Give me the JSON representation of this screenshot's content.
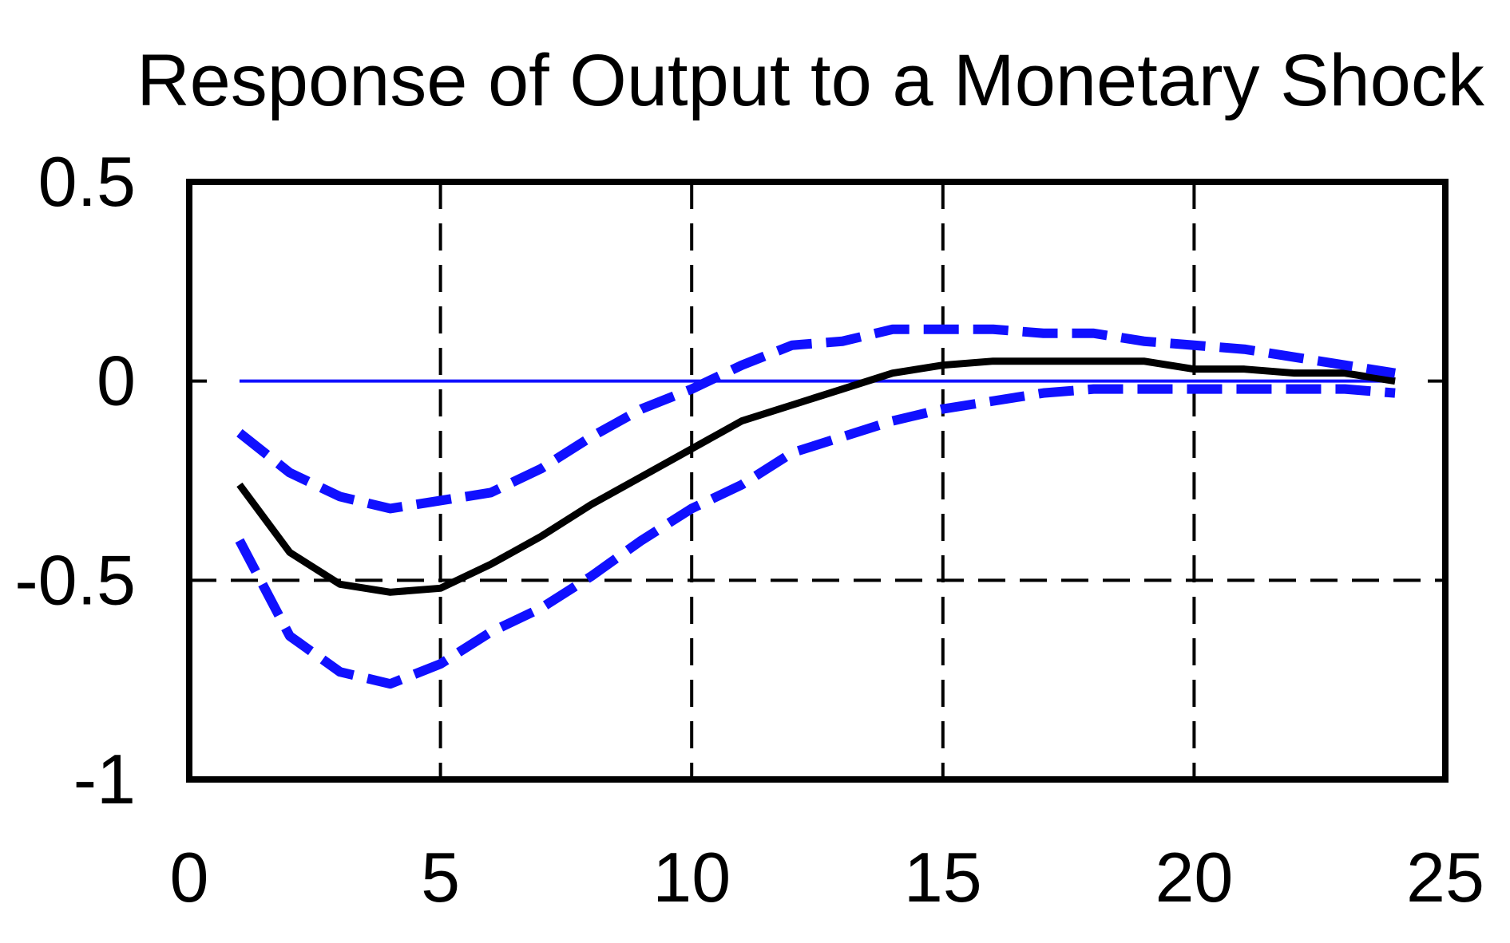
{
  "chart_data": {
    "type": "line",
    "title": "Response of Output to a Monetary Shock",
    "xlabel": "",
    "ylabel": "",
    "xlim": [
      0,
      25
    ],
    "ylim": [
      -1,
      0.5
    ],
    "x_ticks": [
      0,
      5,
      10,
      15,
      20,
      25
    ],
    "y_ticks": [
      0.5,
      0,
      -0.5,
      -1
    ],
    "x_tick_labels": [
      "0",
      "5",
      "10",
      "15",
      "20",
      "25"
    ],
    "y_tick_labels": [
      "0.5",
      "0",
      "-0.5",
      "-1"
    ],
    "grid": {
      "x_dashed_at": [
        5,
        10,
        15,
        20
      ],
      "y_dashed_at": [
        -0.5
      ]
    },
    "zero_line": {
      "y": 0,
      "x_start": 1,
      "x_end": 24,
      "color": "#1010ff"
    },
    "series": [
      {
        "style": "solid",
        "color": "#000000",
        "x": [
          1,
          2,
          3,
          4,
          5,
          6,
          7,
          8,
          9,
          10,
          11,
          12,
          13,
          14,
          15,
          16,
          17,
          18,
          19,
          20,
          21,
          22,
          23,
          24
        ],
        "values": [
          -0.26,
          -0.43,
          -0.51,
          -0.53,
          -0.52,
          -0.46,
          -0.39,
          -0.31,
          -0.24,
          -0.17,
          -0.1,
          -0.06,
          -0.02,
          0.02,
          0.04,
          0.05,
          0.05,
          0.05,
          0.05,
          0.03,
          0.03,
          0.02,
          0.02,
          0.0
        ]
      },
      {
        "style": "dashed",
        "color": "#1010ff",
        "x": [
          1,
          2,
          3,
          4,
          5,
          6,
          7,
          8,
          9,
          10,
          11,
          12,
          13,
          14,
          15,
          16,
          17,
          18,
          19,
          20,
          21,
          22,
          23,
          24
        ],
        "values": [
          -0.13,
          -0.23,
          -0.29,
          -0.32,
          -0.3,
          -0.28,
          -0.22,
          -0.14,
          -0.07,
          -0.02,
          0.04,
          0.09,
          0.1,
          0.13,
          0.13,
          0.13,
          0.12,
          0.12,
          0.1,
          0.09,
          0.08,
          0.06,
          0.04,
          0.02
        ]
      },
      {
        "style": "dashed",
        "color": "#1010ff",
        "x": [
          1,
          2,
          3,
          4,
          5,
          6,
          7,
          8,
          9,
          10,
          11,
          12,
          13,
          14,
          15,
          16,
          17,
          18,
          19,
          20,
          21,
          22,
          23,
          24
        ],
        "values": [
          -0.4,
          -0.64,
          -0.73,
          -0.76,
          -0.71,
          -0.63,
          -0.57,
          -0.49,
          -0.4,
          -0.32,
          -0.26,
          -0.18,
          -0.14,
          -0.1,
          -0.07,
          -0.05,
          -0.03,
          -0.02,
          -0.02,
          -0.02,
          -0.02,
          -0.02,
          -0.02,
          -0.03
        ]
      }
    ]
  }
}
